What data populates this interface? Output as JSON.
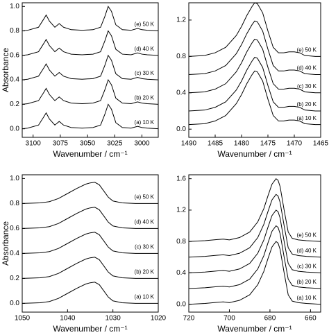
{
  "chart_data": [
    {
      "type": "line",
      "xlabel": "Wavenumber / cm⁻¹",
      "ylabel": "Absorbance",
      "color": "#000000",
      "xlim": [
        3110,
        2985
      ],
      "xticks": [
        3100,
        3075,
        3050,
        3025,
        3000
      ],
      "ylim": [
        -0.07,
        1.03
      ],
      "yticks": [
        {
          "value": 0,
          "label": "0.0"
        },
        0.2,
        0.4,
        0.6,
        0.8,
        {
          "value": 1,
          "label": "1.0"
        }
      ],
      "x": [
        3110,
        3105,
        3095,
        3090,
        3088,
        3085,
        3080,
        3076,
        3072,
        3065,
        3055,
        3045,
        3038,
        3034,
        3031,
        3028,
        3024,
        3018,
        3010,
        3004,
        3000,
        2995,
        2985
      ],
      "series": [
        {
          "name": "(a) 10 K",
          "values": [
            0,
            0.005,
            0.03,
            0.1,
            0.13,
            0.08,
            0.03,
            0.06,
            0.03,
            0.01,
            0.005,
            0.01,
            0.03,
            0.12,
            0.2,
            0.16,
            0.05,
            0.01,
            0.005,
            0.02,
            0.01,
            0.005,
            0
          ]
        },
        {
          "name": "(b) 20 K",
          "values": [
            0.2,
            0.205,
            0.23,
            0.3,
            0.33,
            0.28,
            0.23,
            0.26,
            0.23,
            0.21,
            0.205,
            0.21,
            0.23,
            0.32,
            0.4,
            0.36,
            0.25,
            0.21,
            0.205,
            0.22,
            0.21,
            0.205,
            0.2
          ]
        },
        {
          "name": "(c) 30 K",
          "values": [
            0.4,
            0.405,
            0.43,
            0.5,
            0.53,
            0.48,
            0.43,
            0.46,
            0.43,
            0.41,
            0.405,
            0.41,
            0.43,
            0.52,
            0.6,
            0.56,
            0.45,
            0.41,
            0.405,
            0.42,
            0.41,
            0.405,
            0.4
          ]
        },
        {
          "name": "(d) 40 K",
          "values": [
            0.6,
            0.605,
            0.63,
            0.7,
            0.73,
            0.68,
            0.63,
            0.66,
            0.63,
            0.61,
            0.605,
            0.61,
            0.63,
            0.72,
            0.8,
            0.76,
            0.65,
            0.61,
            0.605,
            0.62,
            0.61,
            0.605,
            0.6
          ]
        },
        {
          "name": "(e) 50 K",
          "values": [
            0.8,
            0.805,
            0.83,
            0.9,
            0.93,
            0.88,
            0.83,
            0.86,
            0.83,
            0.81,
            0.805,
            0.81,
            0.83,
            0.92,
            1.0,
            0.96,
            0.85,
            0.81,
            0.805,
            0.82,
            0.81,
            0.805,
            0.8
          ]
        }
      ]
    },
    {
      "type": "line",
      "xlabel": "Wavenumber / cm⁻¹",
      "color": "#000000",
      "xlim": [
        1490,
        1465
      ],
      "xticks": [
        1490,
        1485,
        1480,
        1475,
        1470,
        1465
      ],
      "ylim": [
        -0.09,
        1.39
      ],
      "yticks": [
        {
          "value": 0,
          "label": "0.0"
        },
        0.4,
        0.8,
        1.2
      ],
      "x": [
        1490,
        1487,
        1485,
        1483,
        1481,
        1480,
        1479,
        1478,
        1477.5,
        1477,
        1476,
        1475,
        1474,
        1473,
        1472,
        1471,
        1470,
        1469,
        1468,
        1466,
        1465
      ],
      "series": [
        {
          "name": "(a) 10 K",
          "values": [
            0.05,
            0.06,
            0.09,
            0.15,
            0.28,
            0.38,
            0.5,
            0.6,
            0.64,
            0.63,
            0.53,
            0.33,
            0.15,
            0.09,
            0.09,
            0.1,
            0.1,
            0.09,
            0.06,
            0.05,
            0.05
          ]
        },
        {
          "name": "(b) 20 K",
          "values": [
            0.2,
            0.21,
            0.24,
            0.3,
            0.43,
            0.53,
            0.65,
            0.75,
            0.79,
            0.78,
            0.68,
            0.48,
            0.3,
            0.24,
            0.24,
            0.25,
            0.25,
            0.24,
            0.21,
            0.2,
            0.2
          ]
        },
        {
          "name": "(c) 30 K",
          "values": [
            0.4,
            0.41,
            0.44,
            0.5,
            0.63,
            0.73,
            0.85,
            0.95,
            0.99,
            0.98,
            0.88,
            0.68,
            0.5,
            0.44,
            0.44,
            0.45,
            0.45,
            0.44,
            0.41,
            0.4,
            0.4
          ]
        },
        {
          "name": "(d) 40 K",
          "values": [
            0.6,
            0.61,
            0.64,
            0.7,
            0.83,
            0.93,
            1.05,
            1.15,
            1.19,
            1.18,
            1.08,
            0.88,
            0.7,
            0.64,
            0.64,
            0.65,
            0.65,
            0.64,
            0.61,
            0.6,
            0.6
          ]
        },
        {
          "name": "(e) 50 K",
          "values": [
            0.8,
            0.81,
            0.84,
            0.9,
            1.03,
            1.13,
            1.25,
            1.35,
            1.39,
            1.38,
            1.28,
            1.08,
            0.9,
            0.84,
            0.84,
            0.85,
            0.85,
            0.84,
            0.81,
            0.8,
            0.8
          ]
        }
      ]
    },
    {
      "type": "line",
      "xlabel": "Wavenumber / cm⁻¹",
      "ylabel": "Absorbance",
      "color": "#000000",
      "xlim": [
        1050,
        1020
      ],
      "xticks": [
        1050,
        1040,
        1030,
        1020
      ],
      "ylim": [
        -0.07,
        1.03
      ],
      "yticks": [
        {
          "value": 0,
          "label": "0.0"
        },
        0.2,
        0.4,
        0.6,
        0.8,
        {
          "value": 1,
          "label": "1.0"
        }
      ],
      "x": [
        1050,
        1046,
        1044,
        1042,
        1040,
        1038,
        1036,
        1035,
        1034,
        1033,
        1032,
        1031,
        1030,
        1028,
        1025,
        1020
      ],
      "series": [
        {
          "name": "(a) 10 K",
          "values": [
            0,
            0.005,
            0.015,
            0.04,
            0.08,
            0.12,
            0.155,
            0.165,
            0.17,
            0.15,
            0.1,
            0.05,
            0.02,
            0.005,
            0,
            0
          ]
        },
        {
          "name": "(b) 20 K",
          "values": [
            0.2,
            0.205,
            0.215,
            0.24,
            0.28,
            0.32,
            0.355,
            0.365,
            0.37,
            0.35,
            0.3,
            0.25,
            0.22,
            0.205,
            0.2,
            0.2
          ]
        },
        {
          "name": "(c) 30 K",
          "values": [
            0.4,
            0.405,
            0.415,
            0.44,
            0.48,
            0.52,
            0.555,
            0.565,
            0.57,
            0.55,
            0.5,
            0.45,
            0.42,
            0.405,
            0.4,
            0.4
          ]
        },
        {
          "name": "(d) 40 K",
          "values": [
            0.6,
            0.605,
            0.615,
            0.64,
            0.68,
            0.72,
            0.755,
            0.765,
            0.77,
            0.75,
            0.7,
            0.65,
            0.62,
            0.605,
            0.6,
            0.6
          ]
        },
        {
          "name": "(e) 50 K",
          "values": [
            0.8,
            0.805,
            0.815,
            0.84,
            0.88,
            0.92,
            0.955,
            0.965,
            0.97,
            0.95,
            0.9,
            0.85,
            0.82,
            0.805,
            0.8,
            0.8
          ]
        }
      ]
    },
    {
      "type": "line",
      "xlabel": "Wavenumber / cm⁻¹",
      "color": "#000000",
      "xlim": [
        720,
        655
      ],
      "xticks": [
        720,
        700,
        680,
        660
      ],
      "ylim": [
        -0.1,
        1.65
      ],
      "yticks": [
        {
          "value": 0,
          "label": "0.0"
        },
        0.4,
        0.8,
        1.2,
        1.6
      ],
      "x": [
        720,
        712,
        706,
        703,
        700,
        695,
        690,
        686,
        683,
        681,
        679,
        677,
        676,
        675,
        673,
        671,
        669,
        666,
        662,
        655
      ],
      "series": [
        {
          "name": "(a) 10 K",
          "values": [
            0,
            0.01,
            0.025,
            0.03,
            0.02,
            0.05,
            0.12,
            0.25,
            0.42,
            0.58,
            0.73,
            0.8,
            0.78,
            0.7,
            0.4,
            0.12,
            0.04,
            0.02,
            0.01,
            0
          ]
        },
        {
          "name": "(b) 20 K",
          "values": [
            0.2,
            0.21,
            0.225,
            0.23,
            0.22,
            0.25,
            0.32,
            0.45,
            0.62,
            0.78,
            0.93,
            1.0,
            0.98,
            0.9,
            0.6,
            0.32,
            0.24,
            0.22,
            0.21,
            0.2
          ]
        },
        {
          "name": "(c) 30 K",
          "values": [
            0.4,
            0.41,
            0.425,
            0.43,
            0.42,
            0.45,
            0.52,
            0.65,
            0.82,
            0.98,
            1.13,
            1.2,
            1.18,
            1.1,
            0.8,
            0.52,
            0.44,
            0.42,
            0.41,
            0.4
          ]
        },
        {
          "name": "(d) 40 K",
          "values": [
            0.6,
            0.61,
            0.625,
            0.63,
            0.62,
            0.65,
            0.72,
            0.85,
            1.02,
            1.18,
            1.33,
            1.4,
            1.38,
            1.3,
            1.0,
            0.72,
            0.64,
            0.62,
            0.61,
            0.6
          ]
        },
        {
          "name": "(e) 50 K",
          "values": [
            0.8,
            0.81,
            0.825,
            0.83,
            0.82,
            0.85,
            0.92,
            1.05,
            1.22,
            1.38,
            1.53,
            1.6,
            1.58,
            1.5,
            1.2,
            0.92,
            0.84,
            0.82,
            0.81,
            0.8
          ]
        }
      ]
    }
  ]
}
